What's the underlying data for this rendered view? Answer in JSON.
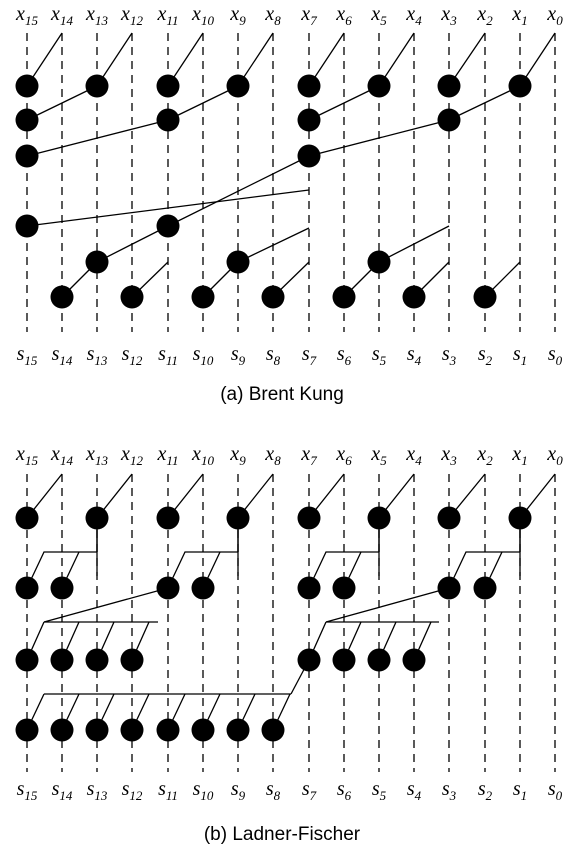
{
  "diagrams": [
    {
      "id": "brent-kung",
      "caption": "(a) Brent Kung",
      "input_labels": [
        {
          "base": "x",
          "sub": "15"
        },
        {
          "base": "x",
          "sub": "14"
        },
        {
          "base": "x",
          "sub": "13"
        },
        {
          "base": "x",
          "sub": "12"
        },
        {
          "base": "x",
          "sub": "11"
        },
        {
          "base": "x",
          "sub": "10"
        },
        {
          "base": "x",
          "sub": "9"
        },
        {
          "base": "x",
          "sub": "8"
        },
        {
          "base": "x",
          "sub": "7"
        },
        {
          "base": "x",
          "sub": "6"
        },
        {
          "base": "x",
          "sub": "5"
        },
        {
          "base": "x",
          "sub": "4"
        },
        {
          "base": "x",
          "sub": "3"
        },
        {
          "base": "x",
          "sub": "2"
        },
        {
          "base": "x",
          "sub": "1"
        },
        {
          "base": "x",
          "sub": "0"
        }
      ],
      "output_labels": [
        {
          "base": "s",
          "sub": "15"
        },
        {
          "base": "s",
          "sub": "14"
        },
        {
          "base": "s",
          "sub": "13"
        },
        {
          "base": "s",
          "sub": "12"
        },
        {
          "base": "s",
          "sub": "11"
        },
        {
          "base": "s",
          "sub": "10"
        },
        {
          "base": "s",
          "sub": "9"
        },
        {
          "base": "s",
          "sub": "8"
        },
        {
          "base": "s",
          "sub": "7"
        },
        {
          "base": "s",
          "sub": "6"
        },
        {
          "base": "s",
          "sub": "5"
        },
        {
          "base": "s",
          "sub": "4"
        },
        {
          "base": "s",
          "sub": "3"
        },
        {
          "base": "s",
          "sub": "2"
        },
        {
          "base": "s",
          "sub": "1"
        },
        {
          "base": "s",
          "sub": "0"
        }
      ]
    },
    {
      "id": "ladner-fischer",
      "caption": "(b) Ladner-Fischer",
      "input_labels": [
        {
          "base": "x",
          "sub": "15"
        },
        {
          "base": "x",
          "sub": "14"
        },
        {
          "base": "x",
          "sub": "13"
        },
        {
          "base": "x",
          "sub": "12"
        },
        {
          "base": "x",
          "sub": "11"
        },
        {
          "base": "x",
          "sub": "10"
        },
        {
          "base": "x",
          "sub": "9"
        },
        {
          "base": "x",
          "sub": "8"
        },
        {
          "base": "x",
          "sub": "7"
        },
        {
          "base": "x",
          "sub": "6"
        },
        {
          "base": "x",
          "sub": "5"
        },
        {
          "base": "x",
          "sub": "4"
        },
        {
          "base": "x",
          "sub": "3"
        },
        {
          "base": "x",
          "sub": "2"
        },
        {
          "base": "x",
          "sub": "1"
        },
        {
          "base": "x",
          "sub": "0"
        }
      ],
      "output_labels": [
        {
          "base": "s",
          "sub": "15"
        },
        {
          "base": "s",
          "sub": "14"
        },
        {
          "base": "s",
          "sub": "13"
        },
        {
          "base": "s",
          "sub": "12"
        },
        {
          "base": "s",
          "sub": "11"
        },
        {
          "base": "s",
          "sub": "10"
        },
        {
          "base": "s",
          "sub": "9"
        },
        {
          "base": "s",
          "sub": "8"
        },
        {
          "base": "s",
          "sub": "7"
        },
        {
          "base": "s",
          "sub": "6"
        },
        {
          "base": "s",
          "sub": "5"
        },
        {
          "base": "s",
          "sub": "4"
        },
        {
          "base": "s",
          "sub": "3"
        },
        {
          "base": "s",
          "sub": "2"
        },
        {
          "base": "s",
          "sub": "1"
        },
        {
          "base": "s",
          "sub": "0"
        }
      ]
    }
  ]
}
